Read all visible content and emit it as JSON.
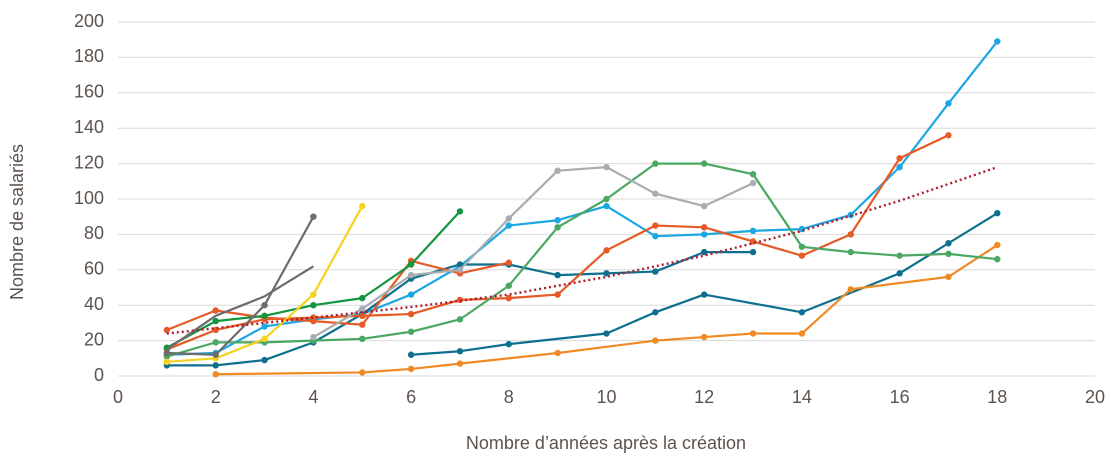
{
  "chart_data": {
    "type": "line",
    "xlabel": "Nombre d’années après la création",
    "ylabel": "Nombre de salariés",
    "xlim": [
      0,
      20
    ],
    "xticks": [
      0,
      2,
      4,
      6,
      8,
      10,
      12,
      14,
      16,
      18,
      20
    ],
    "ylim": [
      0,
      200
    ],
    "yticks": [
      0,
      20,
      40,
      60,
      80,
      100,
      120,
      140,
      160,
      180,
      200
    ],
    "grid": true,
    "series": [
      {
        "color": "#1ba7e1",
        "markers": true,
        "x": [
          1,
          2,
          3,
          4,
          5,
          6,
          7,
          8,
          9,
          10,
          11,
          12,
          13,
          14,
          15,
          16,
          17,
          18
        ],
        "values": [
          12,
          13,
          28,
          32,
          35,
          46,
          62,
          85,
          88,
          96,
          79,
          80,
          82,
          83,
          91,
          118,
          154,
          189
        ]
      },
      {
        "color": "#0e6f8e",
        "markers": true,
        "x": [
          1,
          2,
          3,
          4,
          5,
          6,
          7,
          8,
          9,
          10,
          11,
          12,
          13
        ],
        "values": [
          6,
          6,
          9,
          19,
          35,
          55,
          63,
          63,
          57,
          58,
          59,
          70,
          70
        ]
      },
      {
        "color": "#0e6f8e",
        "markers": true,
        "x": [
          6,
          7,
          8,
          10,
          11,
          12,
          14,
          16,
          17,
          18
        ],
        "values": [
          12,
          14,
          18,
          24,
          36,
          46,
          36,
          58,
          75,
          92
        ]
      },
      {
        "color": "#f08a24",
        "markers": true,
        "x": [
          2,
          5,
          6,
          7,
          9,
          11,
          12,
          13,
          14,
          15,
          17,
          18
        ],
        "values": [
          1,
          2,
          4,
          7,
          13,
          20,
          22,
          24,
          24,
          49,
          56,
          74
        ]
      },
      {
        "color": "#e55a25",
        "markers": true,
        "x": [
          1,
          2,
          3,
          4,
          5,
          6,
          7,
          8
        ],
        "values": [
          26,
          37,
          33,
          31,
          29,
          65,
          58,
          64
        ]
      },
      {
        "color": "#e55a25",
        "markers": true,
        "x": [
          1,
          2,
          3,
          4,
          5,
          6,
          7,
          8,
          9,
          10,
          11,
          12,
          13,
          14,
          15,
          16,
          17
        ],
        "values": [
          15,
          26,
          32,
          33,
          34,
          35,
          43,
          44,
          46,
          71,
          85,
          84,
          76,
          68,
          80,
          123,
          136
        ]
      },
      {
        "color": "#4aa862",
        "markers": true,
        "x": [
          1,
          2,
          3,
          4,
          5,
          6,
          7,
          8,
          9,
          10,
          11,
          12,
          13,
          14,
          15,
          16,
          17,
          18
        ],
        "values": [
          11,
          19,
          19,
          20,
          21,
          25,
          32,
          51,
          84,
          100,
          120,
          120,
          114,
          73,
          70,
          68,
          69,
          66
        ]
      },
      {
        "color": "#13953f",
        "markers": true,
        "x": [
          1,
          2,
          3,
          4,
          5,
          6,
          7
        ],
        "values": [
          16,
          31,
          34,
          40,
          44,
          63,
          93
        ]
      },
      {
        "color": "#f5d21e",
        "markers": true,
        "x": [
          1,
          2,
          3,
          4,
          5
        ],
        "values": [
          8,
          10,
          21,
          46,
          96
        ]
      },
      {
        "color": "#6c6c6c",
        "markers": true,
        "x": [
          1,
          2,
          3,
          4
        ],
        "values": [
          13,
          12,
          40,
          90
        ]
      },
      {
        "color": "#6c6c6c",
        "markers": false,
        "x": [
          1,
          2,
          3,
          4
        ],
        "values": [
          15,
          34,
          45,
          62
        ]
      },
      {
        "color": "#a8adb2",
        "markers": true,
        "x": [
          4,
          5,
          6,
          7,
          8,
          9,
          10,
          11,
          12,
          13
        ],
        "values": [
          22,
          38,
          57,
          60,
          89,
          116,
          118,
          103,
          96,
          109
        ]
      },
      {
        "color": "#b01c2e",
        "markers": false,
        "dash": "dotted",
        "x": [
          1,
          4,
          6,
          8,
          10,
          12,
          14,
          16,
          18
        ],
        "values": [
          24,
          33,
          39,
          46,
          56,
          68,
          82,
          99,
          118
        ]
      }
    ]
  }
}
